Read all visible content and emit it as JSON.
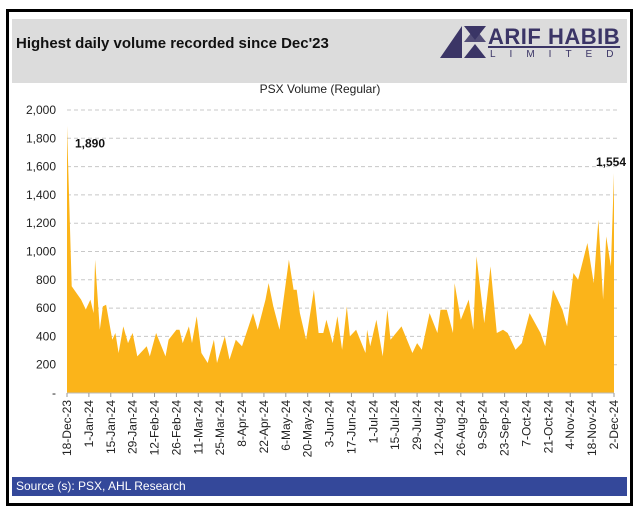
{
  "header": {
    "title": "Highest daily volume recorded since Dec'23"
  },
  "logo": {
    "name": "ARIF HABIB",
    "sub": "LIMITED",
    "color": "#3b3566"
  },
  "footer": {
    "source": "Source (s): PSX, AHL Research"
  },
  "chart_data": {
    "type": "area",
    "title": "PSX Volume (Regular)",
    "xlabel": "",
    "ylabel": "",
    "ylim": [
      0,
      2000
    ],
    "yticks": [
      0,
      200,
      400,
      600,
      800,
      1000,
      1200,
      1400,
      1600,
      1800,
      2000
    ],
    "ytick_labels": [
      "-",
      "200",
      "400",
      "600",
      "800",
      "1,000",
      "1,200",
      "1,400",
      "1,600",
      "1,800",
      "2,000"
    ],
    "x_unit": "days since 18-Dec-23",
    "xlim": [
      0,
      350
    ],
    "xtick_days": [
      0,
      14,
      28,
      42,
      56,
      70,
      84,
      98,
      112,
      126,
      140,
      154,
      168,
      182,
      196,
      210,
      224,
      238,
      252,
      266,
      280,
      294,
      308,
      322,
      336,
      350
    ],
    "xtick_labels": [
      "18-Dec-23",
      "1-Jan-24",
      "15-Jan-24",
      "29-Jan-24",
      "12-Feb-24",
      "26-Feb-24",
      "11-Mar-24",
      "25-Mar-24",
      "8-Apr-24",
      "22-Apr-24",
      "6-May-24",
      "20-May-24",
      "3-Jun-24",
      "17-Jun-24",
      "1-Jul-24",
      "15-Jul-24",
      "29-Jul-24",
      "12-Aug-24",
      "26-Aug-24",
      "9-Sep-24",
      "23-Sep-24",
      "7-Oct-24",
      "21-Oct-24",
      "4-Nov-24",
      "18-Nov-24",
      "2-Dec-24"
    ],
    "grid": true,
    "color": "#fbb41a",
    "series": [
      {
        "name": "PSX Volume (Regular)",
        "x": [
          0,
          3,
          9,
          12,
          15,
          17,
          18,
          21,
          23,
          25,
          29,
          31,
          33,
          36,
          39,
          42,
          45,
          51,
          53,
          57,
          63,
          65,
          70,
          72,
          74,
          78,
          80,
          83,
          86,
          90,
          94,
          96,
          101,
          104,
          108,
          112,
          119,
          122,
          127,
          129,
          132,
          136,
          142,
          145,
          147,
          149,
          153,
          158,
          161,
          164,
          166,
          170,
          173,
          176,
          179,
          181,
          185,
          191,
          192,
          194,
          198,
          202,
          205,
          207,
          214,
          221,
          224,
          227,
          232,
          237,
          239,
          243,
          247,
          248,
          252,
          257,
          260,
          262,
          267,
          271,
          275,
          279,
          282,
          287,
          291,
          296,
          303,
          306,
          311,
          317,
          320,
          324,
          327,
          333,
          337,
          340,
          343,
          345,
          348,
          350
        ],
        "y": [
          1890,
          754,
          660,
          590,
          660,
          565,
          942,
          447,
          612,
          624,
          377,
          424,
          283,
          471,
          353,
          424,
          259,
          330,
          259,
          424,
          259,
          377,
          447,
          447,
          353,
          471,
          353,
          542,
          283,
          212,
          377,
          212,
          400,
          236,
          377,
          330,
          565,
          447,
          660,
          777,
          612,
          447,
          942,
          730,
          730,
          565,
          377,
          730,
          424,
          424,
          518,
          353,
          542,
          306,
          612,
          400,
          447,
          283,
          447,
          330,
          518,
          259,
          589,
          377,
          471,
          283,
          353,
          306,
          565,
          424,
          589,
          589,
          424,
          777,
          518,
          660,
          447,
          966,
          494,
          895,
          424,
          447,
          424,
          306,
          353,
          565,
          424,
          330,
          730,
          589,
          471,
          848,
          800,
          1060,
          777,
          1225,
          660,
          1107,
          895,
          1554
        ]
      }
    ],
    "annotations": [
      {
        "day": 0,
        "label": "1,890"
      },
      {
        "day": 350,
        "label": "1,554"
      }
    ]
  }
}
